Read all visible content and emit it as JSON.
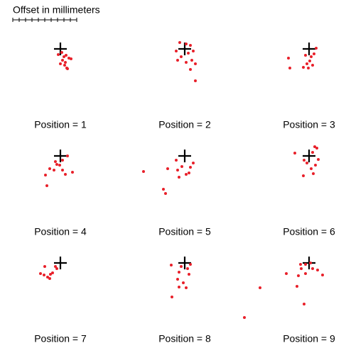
{
  "title": "Offset in millimeters",
  "chart_data": [
    {
      "type": "scatter",
      "title": "Position = 1",
      "color": "#e8202a",
      "xlim": [
        -87.5,
        87.5
      ],
      "ylim": [
        -100,
        50
      ],
      "x": [
        -3,
        2,
        5,
        8,
        12,
        15,
        3,
        7,
        0,
        9,
        6,
        10
      ],
      "y": [
        -8,
        -5,
        -11,
        -9,
        -13,
        -14,
        -16,
        -19,
        -21,
        -27,
        -23,
        -28
      ]
    },
    {
      "type": "scatter",
      "title": "Position = 2",
      "color": "#e8202a",
      "xlim": [
        -87.5,
        87.5
      ],
      "ylim": [
        -100,
        50
      ],
      "x": [
        -7,
        2,
        8,
        -12,
        5,
        12,
        -5,
        10,
        2,
        15,
        8,
        15,
        -10
      ],
      "y": [
        9,
        7,
        5,
        -3,
        -6,
        -3,
        -11,
        -16,
        -19,
        -21,
        -29,
        -45,
        -16
      ]
    },
    {
      "type": "scatter",
      "title": "Position = 3",
      "color": "#e8202a",
      "xlim": [
        -87.5,
        87.5
      ],
      "ylim": [
        -100,
        50
      ],
      "x": [
        -29,
        -27,
        -5,
        3,
        7,
        1,
        -3,
        -8,
        5,
        -1,
        10
      ],
      "y": [
        -13,
        -27,
        -9,
        -11,
        -7,
        -17,
        -21,
        -26,
        -23,
        -27,
        1
      ]
    },
    {
      "type": "scatter",
      "title": "Position = 4",
      "color": "#e8202a",
      "xlim": [
        -87.5,
        87.5
      ],
      "ylim": [
        -100,
        50
      ],
      "x": [
        -7,
        3,
        10,
        -1,
        -15,
        -9,
        3,
        -21,
        7,
        17,
        -19,
        -5
      ],
      "y": [
        -8,
        -6,
        0,
        -13,
        -18,
        -20,
        -20,
        -27,
        -26,
        -23,
        -42,
        -12
      ]
    },
    {
      "type": "scatter",
      "title": "Position = 5",
      "color": "#e8202a",
      "xlim": [
        -87.5,
        87.5
      ],
      "ylim": [
        -100,
        50
      ],
      "x": [
        -58,
        -30,
        -27,
        -12,
        -24,
        -10,
        -4,
        8,
        12,
        2,
        -8,
        6
      ],
      "y": [
        -22,
        -47,
        -53,
        -6,
        -18,
        -20,
        -15,
        -16,
        -10,
        -26,
        -30,
        -24
      ]
    },
    {
      "type": "scatter",
      "title": "Position = 6",
      "color": "#e8202a",
      "xlim": [
        -87.5,
        87.5
      ],
      "ylim": [
        -100,
        50
      ],
      "x": [
        8,
        11,
        -20,
        5,
        -7,
        13,
        9,
        3,
        -8,
        6,
        -3
      ],
      "y": [
        13,
        11,
        4,
        5,
        -6,
        -5,
        -13,
        -18,
        -28,
        -25,
        -10
      ]
    },
    {
      "type": "scatter",
      "title": "Position = 7",
      "color": "#e8202a",
      "xlim": [
        -87.5,
        87.5
      ],
      "ylim": [
        -100,
        50
      ],
      "x": [
        -7,
        -22,
        -28,
        -23,
        -18,
        -15,
        -11,
        -5,
        -14
      ],
      "y": [
        -5,
        -5,
        -15,
        -17,
        -20,
        -22,
        -14,
        -8,
        -16
      ]
    },
    {
      "type": "scatter",
      "title": "Position = 8",
      "color": "#e8202a",
      "xlim": [
        -87.5,
        87.5
      ],
      "ylim": [
        -100,
        50
      ],
      "x": [
        -19,
        -5,
        4,
        -8,
        6,
        -10,
        -2,
        2,
        -8,
        -18,
        8
      ],
      "y": [
        -3,
        -5,
        -8,
        -13,
        -16,
        -23,
        -28,
        -35,
        -34,
        -48,
        -2
      ]
    },
    {
      "type": "scatter",
      "title": "Position = 9",
      "color": "#e8202a",
      "xlim": [
        -87.5,
        87.5
      ],
      "ylim": [
        -100,
        50
      ],
      "x": [
        -69,
        -91,
        -32,
        -11,
        -5,
        5,
        12,
        -15,
        -5,
        19,
        -17,
        -7,
        2,
        -12
      ],
      "y": [
        -35,
        -77,
        -15,
        -8,
        -2,
        -8,
        -10,
        -18,
        -15,
        -17,
        -33,
        -58,
        0,
        -2
      ]
    }
  ]
}
